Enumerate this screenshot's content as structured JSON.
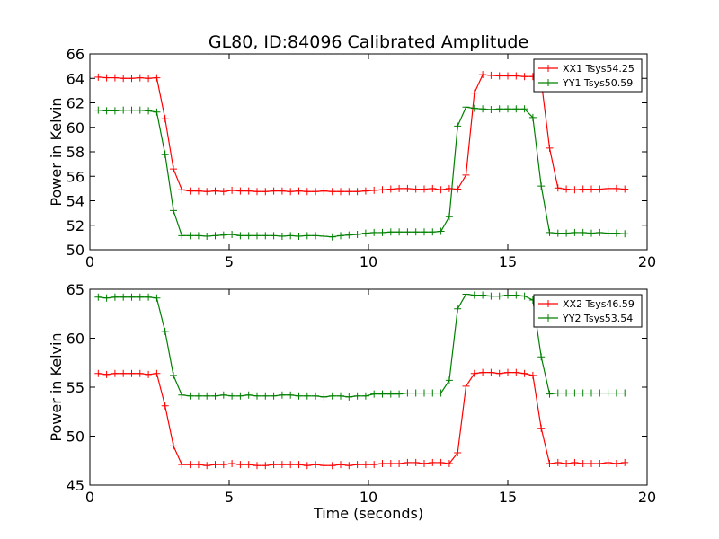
{
  "figure_title": "GL80, ID:84096 Calibrated Amplitude",
  "chart_data": [
    {
      "type": "line",
      "xlabel": "",
      "ylabel": "Power in Kelvin",
      "xlim": [
        0,
        20
      ],
      "ylim": [
        50,
        66
      ],
      "xticks": [
        0,
        5,
        10,
        15,
        20
      ],
      "yticks": [
        50,
        52,
        54,
        56,
        58,
        60,
        62,
        64,
        66
      ],
      "grid": false,
      "legend": "top-right",
      "x": [
        0.3,
        0.6,
        0.9,
        1.2,
        1.5,
        1.8,
        2.1,
        2.4,
        2.7,
        3.0,
        3.3,
        3.6,
        3.9,
        4.2,
        4.5,
        4.8,
        5.1,
        5.4,
        5.7,
        6.0,
        6.3,
        6.6,
        6.9,
        7.2,
        7.5,
        7.8,
        8.1,
        8.4,
        8.7,
        9.0,
        9.3,
        9.6,
        9.9,
        10.2,
        10.5,
        10.8,
        11.1,
        11.4,
        11.7,
        12.0,
        12.3,
        12.6,
        12.9,
        13.2,
        13.5,
        13.8,
        14.1,
        14.4,
        14.7,
        15.0,
        15.3,
        15.6,
        15.9,
        16.2,
        16.5,
        16.8,
        17.1,
        17.4,
        17.7,
        18.0,
        18.3,
        18.6,
        18.9,
        19.2
      ],
      "series": [
        {
          "name": "XX1 Tsys54.25",
          "color": "#ff0000",
          "values": [
            64.1,
            64.05,
            64.05,
            64.0,
            64.0,
            64.05,
            64.0,
            64.05,
            60.7,
            56.6,
            54.9,
            54.8,
            54.8,
            54.75,
            54.8,
            54.75,
            54.85,
            54.8,
            54.8,
            54.75,
            54.75,
            54.8,
            54.8,
            54.75,
            54.8,
            54.75,
            54.75,
            54.8,
            54.75,
            54.75,
            54.75,
            54.75,
            54.8,
            54.85,
            54.9,
            54.95,
            55.0,
            55.0,
            54.95,
            54.95,
            55.0,
            54.9,
            55.0,
            54.95,
            56.1,
            62.8,
            64.3,
            64.25,
            64.2,
            64.2,
            64.2,
            64.15,
            64.15,
            63.8,
            58.3,
            55.05,
            54.95,
            54.9,
            54.95,
            54.95,
            54.95,
            55.0,
            55.0,
            54.95
          ]
        },
        {
          "name": "YY1 Tsys50.59",
          "color": "#008000",
          "values": [
            61.4,
            61.35,
            61.35,
            61.4,
            61.4,
            61.4,
            61.35,
            61.25,
            57.8,
            53.2,
            51.15,
            51.15,
            51.15,
            51.1,
            51.15,
            51.2,
            51.25,
            51.15,
            51.15,
            51.15,
            51.15,
            51.15,
            51.1,
            51.15,
            51.1,
            51.15,
            51.15,
            51.1,
            51.05,
            51.15,
            51.2,
            51.25,
            51.35,
            51.4,
            51.4,
            51.45,
            51.45,
            51.45,
            51.45,
            51.45,
            51.45,
            51.5,
            52.7,
            60.1,
            61.65,
            61.55,
            61.5,
            61.45,
            61.5,
            61.5,
            61.5,
            61.5,
            60.8,
            55.2,
            51.4,
            51.35,
            51.35,
            51.4,
            51.4,
            51.35,
            51.4,
            51.35,
            51.35,
            51.3
          ]
        }
      ]
    },
    {
      "type": "line",
      "xlabel": "Time (seconds)",
      "ylabel": "Power in Kelvin",
      "xlim": [
        0,
        20
      ],
      "ylim": [
        45,
        65
      ],
      "xticks": [
        0,
        5,
        10,
        15,
        20
      ],
      "yticks": [
        45,
        50,
        55,
        60,
        65
      ],
      "grid": false,
      "legend": "top-right",
      "x": [
        0.3,
        0.6,
        0.9,
        1.2,
        1.5,
        1.8,
        2.1,
        2.4,
        2.7,
        3.0,
        3.3,
        3.6,
        3.9,
        4.2,
        4.5,
        4.8,
        5.1,
        5.4,
        5.7,
        6.0,
        6.3,
        6.6,
        6.9,
        7.2,
        7.5,
        7.8,
        8.1,
        8.4,
        8.7,
        9.0,
        9.3,
        9.6,
        9.9,
        10.2,
        10.5,
        10.8,
        11.1,
        11.4,
        11.7,
        12.0,
        12.3,
        12.6,
        12.9,
        13.2,
        13.5,
        13.8,
        14.1,
        14.4,
        14.7,
        15.0,
        15.3,
        15.6,
        15.9,
        16.2,
        16.5,
        16.8,
        17.1,
        17.4,
        17.7,
        18.0,
        18.3,
        18.6,
        18.9,
        19.2
      ],
      "series": [
        {
          "name": "XX2 Tsys46.59",
          "color": "#ff0000",
          "values": [
            56.4,
            56.3,
            56.4,
            56.4,
            56.4,
            56.4,
            56.3,
            56.4,
            53.1,
            49.0,
            47.1,
            47.1,
            47.1,
            47.0,
            47.1,
            47.1,
            47.2,
            47.1,
            47.1,
            47.0,
            47.0,
            47.1,
            47.1,
            47.1,
            47.1,
            47.0,
            47.1,
            47.0,
            47.0,
            47.1,
            47.0,
            47.1,
            47.1,
            47.1,
            47.2,
            47.2,
            47.2,
            47.3,
            47.3,
            47.2,
            47.3,
            47.3,
            47.2,
            48.3,
            55.1,
            56.4,
            56.5,
            56.5,
            56.4,
            56.5,
            56.5,
            56.4,
            56.2,
            50.8,
            47.2,
            47.3,
            47.2,
            47.3,
            47.2,
            47.2,
            47.2,
            47.3,
            47.2,
            47.3
          ]
        },
        {
          "name": "YY2 Tsys53.54",
          "color": "#008000",
          "values": [
            64.2,
            64.1,
            64.2,
            64.2,
            64.2,
            64.2,
            64.2,
            64.1,
            60.7,
            56.2,
            54.2,
            54.1,
            54.1,
            54.1,
            54.1,
            54.2,
            54.1,
            54.1,
            54.2,
            54.1,
            54.1,
            54.1,
            54.2,
            54.2,
            54.1,
            54.1,
            54.1,
            54.0,
            54.1,
            54.1,
            54.0,
            54.1,
            54.1,
            54.3,
            54.3,
            54.3,
            54.3,
            54.4,
            54.4,
            54.4,
            54.4,
            54.4,
            55.7,
            63.0,
            64.5,
            64.4,
            64.4,
            64.3,
            64.3,
            64.4,
            64.4,
            64.3,
            63.9,
            58.1,
            54.3,
            54.4,
            54.4,
            54.4,
            54.4,
            54.4,
            54.4,
            54.4,
            54.4,
            54.4
          ]
        }
      ]
    }
  ]
}
